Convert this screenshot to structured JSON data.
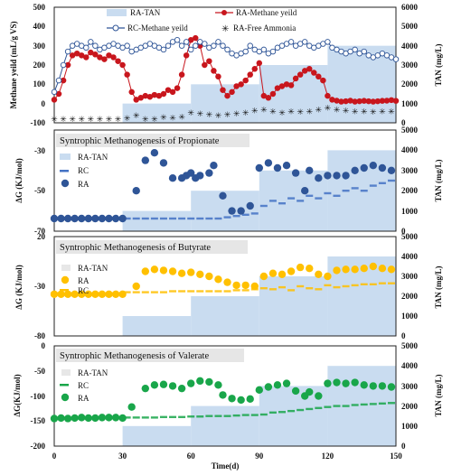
{
  "figure": {
    "xlabel": "Time(d)",
    "x_ticks": [
      "0",
      "30",
      "60",
      "90",
      "120",
      "150"
    ],
    "colors": {
      "tan_fill": "#c9dcf0",
      "ra_methane": "#c8161d",
      "rc_methane": "#2f5597",
      "ammonia": "#7f7f7f",
      "propionate": "#2f5597",
      "butyrate": "#ffc000",
      "valerate": "#19a64a",
      "rc_line": "#4472c4"
    }
  },
  "panels": [
    {
      "title": "",
      "ylabel_left": "Methane yeild (mL/g VS)",
      "ylabel_right": "TAN (mg/L)",
      "yticks_left": [
        "500",
        "400",
        "300",
        "200",
        "100",
        "0",
        "-100"
      ],
      "yticks_right": [
        "6000",
        "5000",
        "4000",
        "3000",
        "2000",
        "1000",
        "0"
      ],
      "legend": [
        "RA-TAN",
        "RA-Methane yeild",
        "RC-Methane yeild",
        "RA-Free Ammonia"
      ]
    },
    {
      "title": "Syntrophic Methanogenesis of Propionate",
      "ylabel_left": "ΔG (KJ/mol)",
      "ylabel_right": "TAN (mg/L)",
      "yticks_left": [
        "-30",
        "-50",
        "-70"
      ],
      "yticks_right": [
        "5000",
        "4000",
        "3000",
        "2000",
        "1000",
        "0"
      ],
      "legend": [
        "RA-TAN",
        "RC",
        "RA"
      ]
    },
    {
      "title": "Syntrophic Methanogenesis of Butyrate",
      "ylabel_left": "ΔG (KJ/mol)",
      "ylabel_right": "TAN (mg/L)",
      "yticks_left": [
        "20",
        "-30",
        "-80"
      ],
      "yticks_right": [
        "5000",
        "4000",
        "3000",
        "2000",
        "1000",
        "0"
      ],
      "legend": [
        "RA-TAN",
        "RA",
        "RC"
      ]
    },
    {
      "title": "Syntrophic Methanogenesis of Valerate",
      "ylabel_left": "ΔG(KJ/mol)",
      "ylabel_right": "TAN (mg/L)",
      "yticks_left": [
        "0",
        "-50",
        "-100",
        "-150",
        "-200"
      ],
      "yticks_right": [
        "5000",
        "4000",
        "3000",
        "2000",
        "1000",
        "0"
      ],
      "legend": [
        "RA-TAN",
        "RC",
        "RA"
      ]
    }
  ],
  "chart_data": [
    {
      "type": "line",
      "xlim": [
        0,
        150
      ],
      "ylim": [
        -100,
        500
      ],
      "y2lim": [
        0,
        6000
      ],
      "tan_steps": [
        [
          0,
          30,
          0
        ],
        [
          30,
          60,
          1000
        ],
        [
          60,
          90,
          2000
        ],
        [
          90,
          120,
          3000
        ],
        [
          120,
          150,
          4000
        ]
      ],
      "series": [
        {
          "name": "RA-Methane yeild",
          "x": [
            0,
            2,
            4,
            6,
            8,
            10,
            12,
            14,
            16,
            18,
            20,
            22,
            24,
            26,
            28,
            30,
            32,
            34,
            36,
            38,
            40,
            42,
            44,
            46,
            48,
            50,
            52,
            54,
            56,
            58,
            60,
            62,
            64,
            66,
            68,
            70,
            72,
            74,
            76,
            78,
            80,
            82,
            84,
            86,
            88,
            90,
            92,
            94,
            96,
            98,
            100,
            102,
            104,
            106,
            108,
            110,
            112,
            114,
            116,
            118,
            120,
            122,
            124,
            126,
            128,
            130,
            132,
            134,
            136,
            138,
            140,
            142,
            144,
            146,
            148,
            150
          ],
          "y": [
            20,
            50,
            120,
            200,
            250,
            260,
            250,
            240,
            265,
            255,
            240,
            230,
            250,
            240,
            220,
            200,
            150,
            60,
            20,
            30,
            40,
            35,
            45,
            40,
            50,
            70,
            60,
            80,
            150,
            250,
            330,
            340,
            300,
            200,
            220,
            170,
            140,
            70,
            40,
            60,
            90,
            100,
            120,
            150,
            180,
            210,
            40,
            30,
            50,
            80,
            90,
            100,
            95,
            130,
            150,
            170,
            180,
            160,
            140,
            120,
            40,
            20,
            15,
            10,
            12,
            15,
            10,
            12,
            14,
            12,
            10,
            12,
            14,
            15,
            18,
            14
          ]
        },
        {
          "name": "RC-Methane yeild",
          "x": [
            0,
            2,
            4,
            6,
            8,
            10,
            12,
            14,
            16,
            18,
            20,
            22,
            24,
            26,
            28,
            30,
            32,
            34,
            36,
            38,
            40,
            42,
            44,
            46,
            48,
            50,
            52,
            54,
            56,
            58,
            60,
            62,
            64,
            66,
            68,
            70,
            72,
            74,
            76,
            78,
            80,
            82,
            84,
            86,
            88,
            90,
            92,
            94,
            96,
            98,
            100,
            102,
            104,
            106,
            108,
            110,
            112,
            114,
            116,
            118,
            120,
            122,
            124,
            126,
            128,
            130,
            132,
            134,
            136,
            138,
            140,
            142,
            144,
            146,
            148,
            150
          ],
          "y": [
            60,
            120,
            200,
            270,
            300,
            310,
            300,
            290,
            320,
            300,
            280,
            290,
            300,
            310,
            300,
            290,
            300,
            270,
            280,
            290,
            300,
            310,
            300,
            290,
            280,
            300,
            320,
            330,
            300,
            320,
            280,
            300,
            320,
            310,
            290,
            300,
            320,
            300,
            280,
            260,
            250,
            260,
            270,
            300,
            280,
            270,
            280,
            260,
            270,
            290,
            300,
            310,
            320,
            300,
            310,
            320,
            300,
            290,
            300,
            310,
            320,
            290,
            280,
            270,
            260,
            270,
            280,
            260,
            270,
            250,
            240,
            250,
            260,
            250,
            240,
            230
          ]
        },
        {
          "name": "RA-Free Ammonia",
          "x": [
            0,
            4,
            8,
            12,
            16,
            20,
            24,
            28,
            32,
            36,
            40,
            44,
            48,
            52,
            56,
            60,
            64,
            68,
            72,
            76,
            80,
            84,
            88,
            92,
            96,
            100,
            104,
            108,
            112,
            116,
            120,
            124,
            128,
            132,
            136,
            140,
            144,
            148
          ],
          "y": [
            -80,
            -80,
            -80,
            -78,
            -80,
            -79,
            -80,
            -78,
            -75,
            -60,
            -78,
            -78,
            -70,
            -72,
            -68,
            -45,
            -50,
            -55,
            -60,
            -55,
            -50,
            -45,
            -35,
            -30,
            -40,
            -45,
            -38,
            -42,
            -40,
            -30,
            -20,
            -30,
            -35,
            -40,
            -38,
            -42,
            -40,
            -38
          ]
        }
      ]
    },
    {
      "type": "scatter",
      "title": "Syntrophic Methanogenesis of Propionate",
      "xlim": [
        0,
        150
      ],
      "ylim": [
        -70,
        -30
      ],
      "y2lim": [
        0,
        5000
      ],
      "tan_steps": [
        [
          0,
          30,
          0
        ],
        [
          30,
          60,
          1000
        ],
        [
          60,
          90,
          2000
        ],
        [
          90,
          120,
          3000
        ],
        [
          120,
          150,
          4000
        ]
      ],
      "series": [
        {
          "name": "RC",
          "x": [
            0,
            4,
            8,
            12,
            16,
            20,
            24,
            28,
            32,
            36,
            40,
            44,
            48,
            52,
            56,
            60,
            64,
            68,
            72,
            76,
            80,
            84,
            88,
            92,
            96,
            100,
            104,
            108,
            112,
            116,
            120,
            124,
            128,
            132,
            136,
            140,
            144,
            148
          ],
          "y": [
            -65,
            -65,
            -65,
            -65,
            -65,
            -65,
            -65,
            -65,
            -65,
            -65,
            -65,
            -65,
            -65,
            -65,
            -65,
            -65,
            -65,
            -65,
            -65,
            -64.5,
            -64,
            -63.5,
            -63,
            -60,
            -58,
            -59,
            -57,
            -58,
            -56,
            -57,
            -55,
            -56,
            -54,
            -53,
            -54,
            -52,
            -51,
            -50
          ]
        },
        {
          "name": "RA",
          "x": [
            0,
            3,
            6,
            9,
            12,
            15,
            18,
            21,
            24,
            27,
            30,
            36,
            40,
            44,
            48,
            52,
            56,
            58,
            60,
            62,
            64,
            68,
            70,
            74,
            78,
            82,
            86,
            90,
            94,
            98,
            102,
            106,
            110,
            112,
            116,
            120,
            124,
            128,
            132,
            136,
            140,
            144,
            148
          ],
          "y": [
            -65,
            -65,
            -65,
            -65,
            -65,
            -65,
            -65,
            -65,
            -65,
            -65,
            -65,
            -54,
            -42,
            -39,
            -43,
            -49,
            -49,
            -48,
            -47,
            -49,
            -48,
            -47,
            -44,
            -56,
            -62,
            -62,
            -60,
            -45,
            -43,
            -45,
            -44,
            -47,
            -54,
            -46,
            -49,
            -48,
            -48,
            -48,
            -46,
            -45,
            -44,
            -45,
            -46
          ]
        }
      ]
    },
    {
      "type": "scatter",
      "title": "Syntrophic Methanogenesis of Butyrate",
      "xlim": [
        0,
        150
      ],
      "ylim": [
        -80,
        20
      ],
      "y2lim": [
        0,
        5000
      ],
      "tan_steps": [
        [
          0,
          30,
          0
        ],
        [
          30,
          60,
          1000
        ],
        [
          60,
          90,
          2000
        ],
        [
          90,
          120,
          3000
        ],
        [
          120,
          150,
          4000
        ]
      ],
      "series": [
        {
          "name": "RA",
          "x": [
            0,
            3,
            6,
            9,
            12,
            15,
            18,
            21,
            24,
            27,
            30,
            36,
            40,
            44,
            48,
            52,
            56,
            60,
            64,
            68,
            72,
            76,
            80,
            84,
            88,
            92,
            96,
            100,
            104,
            108,
            112,
            116,
            120,
            124,
            128,
            132,
            136,
            140,
            144,
            148
          ],
          "y": [
            -38,
            -38,
            -38,
            -38,
            -38,
            -38,
            -38,
            -38,
            -38,
            -38,
            -38,
            -30,
            -15,
            -13,
            -14,
            -15,
            -17,
            -16,
            -18,
            -20,
            -23,
            -26,
            -29,
            -29,
            -30,
            -20,
            -17,
            -18,
            -15,
            -11,
            -12,
            -18,
            -20,
            -14,
            -13,
            -13,
            -12,
            -10,
            -12,
            -13
          ]
        },
        {
          "name": "RC",
          "x": [
            0,
            4,
            8,
            12,
            16,
            20,
            24,
            28,
            32,
            36,
            40,
            44,
            48,
            52,
            56,
            60,
            64,
            68,
            72,
            76,
            80,
            84,
            88,
            92,
            96,
            100,
            104,
            108,
            112,
            116,
            120,
            124,
            128,
            132,
            136,
            140,
            144,
            148
          ],
          "y": [
            -37,
            -37,
            -37,
            -37,
            -37,
            -37,
            -37,
            -37,
            -36,
            -36,
            -36,
            -36,
            -36,
            -35,
            -35,
            -35,
            -35,
            -35,
            -35,
            -35,
            -34,
            -34,
            -33,
            -32,
            -33,
            -31,
            -34,
            -30,
            -32,
            -33,
            -29,
            -31,
            -30,
            -29,
            -28,
            -28,
            -27,
            -27
          ]
        }
      ]
    },
    {
      "type": "scatter",
      "title": "Syntrophic Methanogenesis of Valerate",
      "xlim": [
        0,
        150
      ],
      "ylim": [
        -200,
        0
      ],
      "y2lim": [
        0,
        5000
      ],
      "tan_steps": [
        [
          0,
          30,
          0
        ],
        [
          30,
          60,
          1000
        ],
        [
          60,
          90,
          2000
        ],
        [
          90,
          120,
          3000
        ],
        [
          120,
          150,
          4000
        ]
      ],
      "series": [
        {
          "name": "RC",
          "x": [
            0,
            4,
            8,
            12,
            16,
            20,
            24,
            28,
            32,
            36,
            40,
            44,
            48,
            52,
            56,
            60,
            64,
            68,
            72,
            76,
            80,
            84,
            88,
            92,
            96,
            100,
            104,
            108,
            112,
            116,
            120,
            124,
            128,
            132,
            136,
            140,
            144,
            148
          ],
          "y": [
            -145,
            -145,
            -145,
            -145,
            -144,
            -144,
            -144,
            -144,
            -143,
            -143,
            -143,
            -143,
            -142,
            -142,
            -142,
            -141,
            -141,
            -140,
            -140,
            -140,
            -139,
            -138,
            -138,
            -137,
            -133,
            -132,
            -130,
            -128,
            -126,
            -124,
            -122,
            -120,
            -120,
            -118,
            -117,
            -116,
            -115,
            -114
          ]
        },
        {
          "name": "RA",
          "x": [
            0,
            3,
            6,
            9,
            12,
            15,
            18,
            21,
            24,
            27,
            30,
            34,
            40,
            44,
            48,
            52,
            56,
            60,
            64,
            68,
            72,
            74,
            78,
            82,
            86,
            90,
            94,
            98,
            102,
            106,
            110,
            112,
            116,
            120,
            124,
            128,
            132,
            136,
            140,
            144,
            148
          ],
          "y": [
            -145,
            -144,
            -145,
            -144,
            -143,
            -144,
            -144,
            -143,
            -143,
            -143,
            -144,
            -122,
            -85,
            -78,
            -77,
            -80,
            -85,
            -75,
            -70,
            -72,
            -78,
            -98,
            -105,
            -108,
            -106,
            -88,
            -82,
            -78,
            -75,
            -90,
            -100,
            -92,
            -100,
            -75,
            -73,
            -75,
            -73,
            -78,
            -80,
            -80,
            -82
          ]
        }
      ]
    }
  ]
}
